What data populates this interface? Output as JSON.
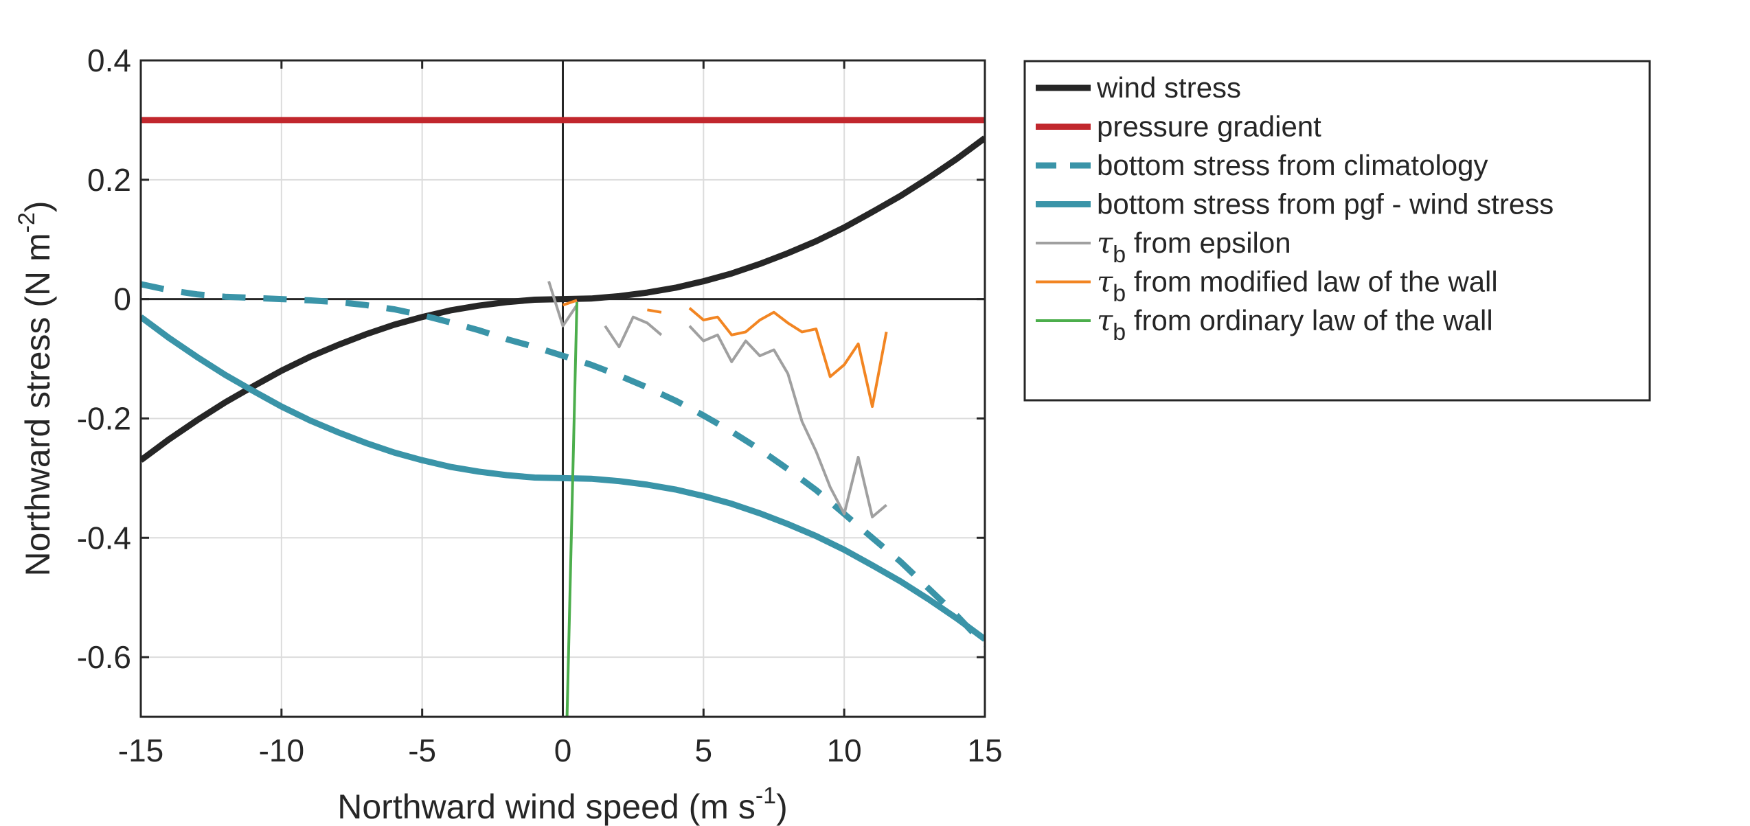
{
  "chart_data": {
    "type": "line",
    "xlabel": "Northward wind speed (m s",
    "xlabel_sup": "-1",
    "xlabel_end": ")",
    "ylabel": "Northward stress (N m",
    "ylabel_sup": "-2",
    "ylabel_end": ")",
    "xlim": [
      -15,
      15
    ],
    "ylim": [
      -0.7,
      0.4
    ],
    "xticks": [
      -15,
      -10,
      -5,
      0,
      5,
      10,
      15
    ],
    "yticks": [
      0.4,
      0.2,
      0,
      -0.2,
      -0.4,
      -0.6
    ],
    "xtick_labels": [
      "-15",
      "-10",
      "-5",
      "0",
      "5",
      "10",
      "15"
    ],
    "ytick_labels": [
      "0.4",
      "0.2",
      "0",
      "-0.2",
      "-0.4",
      "-0.6"
    ],
    "grid": true,
    "legend_position": "outside-right",
    "series": [
      {
        "name": "wind stress",
        "color": "#262626",
        "style": "solid-thick",
        "x": [
          -15,
          -14,
          -13,
          -12,
          -11,
          -10,
          -9,
          -8,
          -7,
          -6,
          -5,
          -4,
          -3,
          -2,
          -1,
          0,
          1,
          2,
          3,
          4,
          5,
          6,
          7,
          8,
          9,
          10,
          11,
          12,
          13,
          14,
          15
        ],
        "y": [
          -0.27,
          -0.235,
          -0.203,
          -0.173,
          -0.146,
          -0.12,
          -0.097,
          -0.077,
          -0.059,
          -0.043,
          -0.03,
          -0.019,
          -0.011,
          -0.005,
          -0.001,
          0,
          0.001,
          0.005,
          0.011,
          0.019,
          0.03,
          0.043,
          0.059,
          0.077,
          0.097,
          0.12,
          0.146,
          0.173,
          0.203,
          0.235,
          0.27
        ]
      },
      {
        "name": "pressure gradient",
        "color": "#c1272d",
        "style": "solid-thick",
        "x": [
          -15,
          15
        ],
        "y": [
          0.3,
          0.3
        ]
      },
      {
        "name": "bottom stress from climatology",
        "color": "#3a94a8",
        "style": "dashed-thick",
        "x": [
          -15,
          -14,
          -13,
          -12,
          -11,
          -10,
          -9,
          -8,
          -7,
          -6,
          -5,
          -4,
          -3,
          -2,
          -1,
          0,
          1,
          2,
          3,
          4,
          5,
          6,
          7,
          8,
          9,
          10,
          11,
          12,
          13,
          14,
          15
        ],
        "y": [
          0.025,
          0.015,
          0.008,
          0.004,
          0.002,
          0.0,
          -0.002,
          -0.005,
          -0.01,
          -0.017,
          -0.027,
          -0.039,
          -0.052,
          -0.067,
          -0.08,
          -0.095,
          -0.11,
          -0.128,
          -0.148,
          -0.17,
          -0.195,
          -0.222,
          -0.252,
          -0.285,
          -0.32,
          -0.36,
          -0.4,
          -0.44,
          -0.485,
          -0.53,
          -0.58
        ]
      },
      {
        "name": "bottom stress from pgf - wind stress",
        "color": "#3a94a8",
        "style": "solid-thick",
        "x": [
          -15,
          -14,
          -13,
          -12,
          -11,
          -10,
          -9,
          -8,
          -7,
          -6,
          -5,
          -4,
          -3,
          -2,
          -1,
          0,
          1,
          2,
          3,
          4,
          5,
          6,
          7,
          8,
          9,
          10,
          11,
          12,
          13,
          14,
          15
        ],
        "y": [
          -0.03,
          -0.065,
          -0.097,
          -0.127,
          -0.154,
          -0.18,
          -0.203,
          -0.223,
          -0.241,
          -0.257,
          -0.27,
          -0.281,
          -0.289,
          -0.295,
          -0.299,
          -0.3,
          -0.301,
          -0.305,
          -0.311,
          -0.319,
          -0.33,
          -0.343,
          -0.359,
          -0.377,
          -0.397,
          -0.42,
          -0.446,
          -0.473,
          -0.503,
          -0.535,
          -0.57
        ]
      },
      {
        "name": "from epsilon",
        "symbol": "τ",
        "subscript": "b",
        "color": "#a0a0a0",
        "style": "solid-thin",
        "x": [
          -0.5,
          0,
          0.5,
          null,
          1.5,
          2,
          2.5,
          3,
          3.5,
          null,
          4.5,
          5,
          5.5,
          6,
          6.5,
          7,
          7.5,
          8,
          8.5,
          9,
          9.5,
          10,
          10.5,
          11,
          11.5
        ],
        "y": [
          0.03,
          -0.045,
          -0.01,
          null,
          -0.045,
          -0.08,
          -0.03,
          -0.04,
          -0.06,
          null,
          -0.045,
          -0.07,
          -0.06,
          -0.105,
          -0.07,
          -0.095,
          -0.085,
          -0.125,
          -0.205,
          -0.255,
          -0.315,
          -0.36,
          -0.265,
          -0.365,
          -0.345
        ]
      },
      {
        "name": "from modified law of the wall",
        "symbol": "τ",
        "subscript": "b",
        "color": "#f28522",
        "style": "solid-thin",
        "x": [
          0,
          0.5,
          null,
          3,
          3.5,
          null,
          4.5,
          5,
          5.5,
          6,
          6.5,
          7,
          7.5,
          8,
          8.5,
          9,
          9.5,
          10,
          10.5,
          11,
          11.5
        ],
        "y": [
          -0.01,
          -0.002,
          null,
          -0.018,
          -0.022,
          null,
          -0.015,
          -0.035,
          -0.03,
          -0.06,
          -0.055,
          -0.035,
          -0.022,
          -0.04,
          -0.055,
          -0.05,
          -0.13,
          -0.11,
          -0.075,
          -0.18,
          -0.055
        ]
      },
      {
        "name": "from ordinary law of the wall",
        "symbol": "τ",
        "subscript": "b",
        "color": "#4cae4c",
        "style": "solid-thin",
        "x": [
          0.15,
          0.5
        ],
        "y": [
          -0.7,
          -0.005
        ]
      }
    ]
  }
}
